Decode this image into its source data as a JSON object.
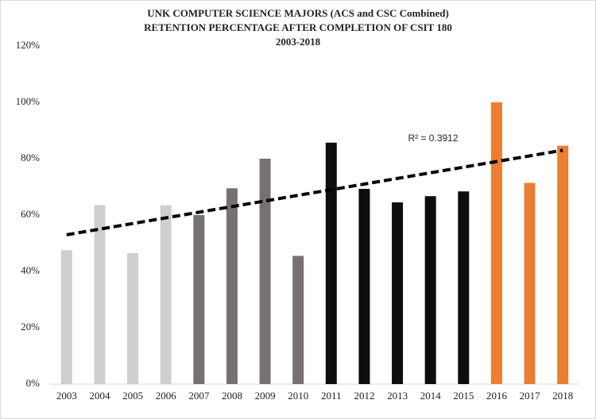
{
  "chart_data": {
    "type": "bar",
    "title": [
      "UNK COMPUTER SCIENCE MAJORS (ACS and CSC Combined)",
      "RETENTION PERCENTAGE AFTER COMPLETION OF CSIT 180",
      "2003-2018"
    ],
    "categories": [
      "2003",
      "2004",
      "2005",
      "2006",
      "2007",
      "2008",
      "2009",
      "2010",
      "2011",
      "2012",
      "2013",
      "2014",
      "2015",
      "2016",
      "2017",
      "2018"
    ],
    "values": [
      47.5,
      63.5,
      46.5,
      63.5,
      60,
      69.5,
      80,
      45.5,
      85.7,
      69.3,
      64.5,
      66.7,
      68.4,
      100,
      71.4,
      84.6
    ],
    "colors": [
      "#d0cece",
      "#d0cece",
      "#d0cece",
      "#d0cece",
      "#767171",
      "#767171",
      "#767171",
      "#767171",
      "#0d0d0d",
      "#0d0d0d",
      "#0d0d0d",
      "#0d0d0d",
      "#0d0d0d",
      "#ed7d31",
      "#ed7d31",
      "#ed7d31"
    ],
    "ylim": [
      0,
      120
    ],
    "yticks": [
      {
        "value": 0,
        "label": "0%"
      },
      {
        "value": 20,
        "label": "20%"
      },
      {
        "value": 40,
        "label": "40%"
      },
      {
        "value": 60,
        "label": "60%"
      },
      {
        "value": 80,
        "label": "80%"
      },
      {
        "value": 100,
        "label": "100%"
      },
      {
        "value": 120,
        "label": "120%"
      }
    ],
    "grid": false,
    "trendline": {
      "label": "R² = 0.3912",
      "values": [
        53,
        83
      ],
      "color": "#000000"
    }
  }
}
